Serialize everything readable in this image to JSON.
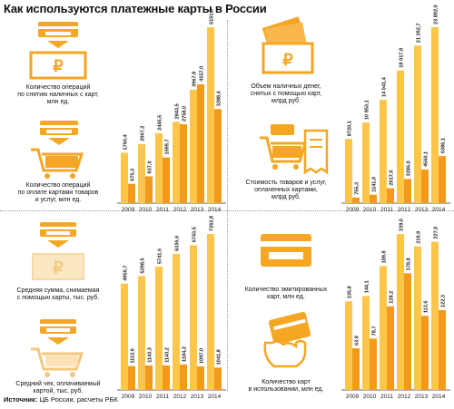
{
  "page": {
    "title": "Как используются платежные карты в России",
    "source_label": "Источник:",
    "source_text": "ЦБ России, расчеты РБК"
  },
  "colors": {
    "dark": "#f39a1d",
    "light": "#fcc64a",
    "icon": "#f5a623",
    "faint": "#f6d9a7"
  },
  "panels": [
    {
      "id": "tl",
      "icon_top": "card-to-ruble-note-icon",
      "caption_top": "Количество операций\nпо снятию наличных с карт,\nмлн ед.",
      "icon_bottom": "card-to-cart-icon",
      "caption_bottom": "Количество операций\nпо оплате картами товаров\nи услуг, млн ед."
    },
    {
      "id": "tr",
      "icon_top": "cash-stack-icon",
      "caption_top": "Объем наличных денег,\nснятых с помощью карт,\nмлрд руб.",
      "icon_bottom": "cart-receipt-icon",
      "caption_bottom": "Стоимость товаров и услуг,\nоплаченных картами,\nмлрд руб."
    },
    {
      "id": "bl",
      "icon_top": "card-to-ruble-faint-icon",
      "caption_top": "Средняя сумма, снимаемая\nс помощью карты, тыс. руб.",
      "icon_bottom": "card-to-cart-faint-icon",
      "caption_bottom": "Средний чек, оплачиваемый\nкартой, тыс. руб."
    },
    {
      "id": "br",
      "icon_top": "bank-card-icon",
      "caption_top": "Количество эмитированных\nкарт, млн ед.",
      "icon_bottom": "card-in-hand-icon",
      "caption_bottom": "Количество карт\nв использовании, млн ед."
    }
  ],
  "chart_data": [
    {
      "type": "bar",
      "categories": [
        "2009",
        "2010",
        "2011",
        "2012",
        "2013",
        "2014"
      ],
      "series": [
        {
          "values": [
            1760.4,
            2067.2,
            2445.5,
            2843.5,
            3967.9,
            6151.0
          ]
        },
        {
          "values": [
            675.3,
            937.0,
            1599.7,
            2758.0,
            4157.0,
            3288.6
          ]
        }
      ],
      "value_labels": [
        [
          "1760,4",
          "2067,2",
          "2445,5",
          "2843,5",
          "3967,9",
          "6151,0"
        ],
        [
          "675,3",
          "937,0",
          "1599,7",
          "2758,0",
          "4157,0",
          "3288,6"
        ]
      ]
    },
    {
      "type": "bar",
      "categories": [
        "2009",
        "2010",
        "2011",
        "2012",
        "2013",
        "2014"
      ],
      "series": [
        {
          "values": [
            8720.1,
            10953.1,
            14041.4,
            18017.8,
            21392.7,
            23892.0
          ]
        },
        {
          "values": [
            755.3,
            1141.0,
            2017.0,
            3286.0,
            4560.1,
            6386.1
          ]
        }
      ],
      "value_labels": [
        [
          "8720,1",
          "10 953,1",
          "14 041,4",
          "18 017,8",
          "21 392,7",
          "23 892,0"
        ],
        [
          "755,3",
          "1141,0",
          "2017,0",
          "3286,0",
          "4560,1",
          "6386,1"
        ]
      ]
    },
    {
      "type": "bar",
      "categories": [
        "2009",
        "2010",
        "2011",
        "2012",
        "2013",
        "2014"
      ],
      "series": [
        {
          "values": [
            4950.7,
            5298.5,
            5741.6,
            6336.6,
            6743.5,
            7262.8
          ]
        },
        {
          "values": [
            1112.6,
            1143.3,
            1143.2,
            1184.2,
            1097.0,
            1041.8
          ]
        }
      ],
      "value_labels": [
        [
          "4950,7",
          "5298,5",
          "5741,6",
          "6336,6",
          "6743,5",
          "7262,8"
        ],
        [
          "1112,6",
          "1143,3",
          "1143,2",
          "1184,2",
          "1097,0",
          "1041,8"
        ]
      ]
    },
    {
      "type": "bar",
      "categories": [
        "2009",
        "2010",
        "2011",
        "2012",
        "2013",
        "2014"
      ],
      "series": [
        {
          "values": [
            135.8,
            144.1,
            189.8,
            239.0,
            219.9,
            227.0
          ]
        },
        {
          "values": [
            63.9,
            78.7,
            128.2,
            178.8,
            113.6,
            122.3
          ]
        }
      ],
      "value_labels": [
        [
          "135,8",
          "144,1",
          "189,8",
          "239,0",
          "219,9",
          "227,0"
        ],
        [
          "63,9",
          "78,7",
          "128,2",
          "178,8",
          "113,6",
          "122,3"
        ]
      ]
    }
  ]
}
